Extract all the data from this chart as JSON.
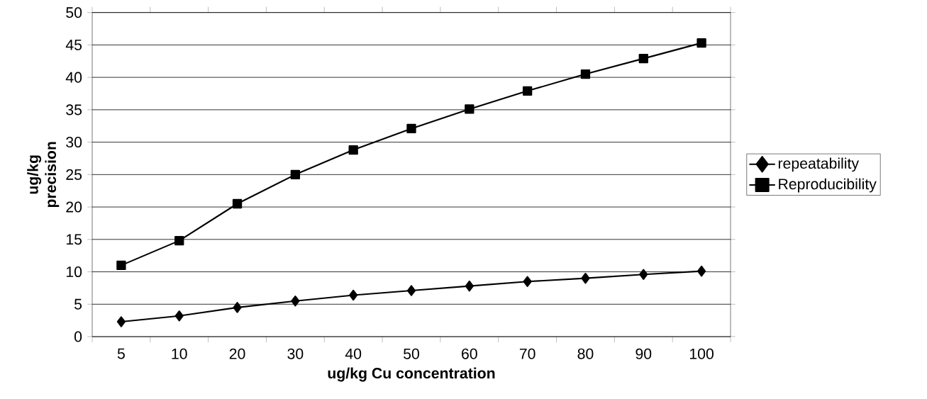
{
  "chart_data": {
    "type": "line",
    "xlabel": "ug/kg Cu concentration",
    "ylabel": "ug/kg precision",
    "categories": [
      "5",
      "10",
      "20",
      "30",
      "40",
      "50",
      "60",
      "70",
      "80",
      "90",
      "100"
    ],
    "series": [
      {
        "name": "repeatability",
        "color": "#000000",
        "marker": "diamond",
        "values": [
          2.3,
          3.2,
          4.5,
          5.5,
          6.4,
          7.1,
          7.8,
          8.5,
          9.0,
          9.6,
          10.1
        ]
      },
      {
        "name": "Reproducibility",
        "color": "#000000",
        "marker": "square",
        "values": [
          11.0,
          14.8,
          20.5,
          25.0,
          28.8,
          32.1,
          35.1,
          37.9,
          40.5,
          42.9,
          45.3
        ]
      }
    ],
    "ylim": [
      0,
      50
    ],
    "yticks": [
      0,
      5,
      10,
      15,
      20,
      25,
      30,
      35,
      40,
      45,
      50
    ],
    "grid": "y",
    "legend": "right",
    "line_style": "solid"
  }
}
